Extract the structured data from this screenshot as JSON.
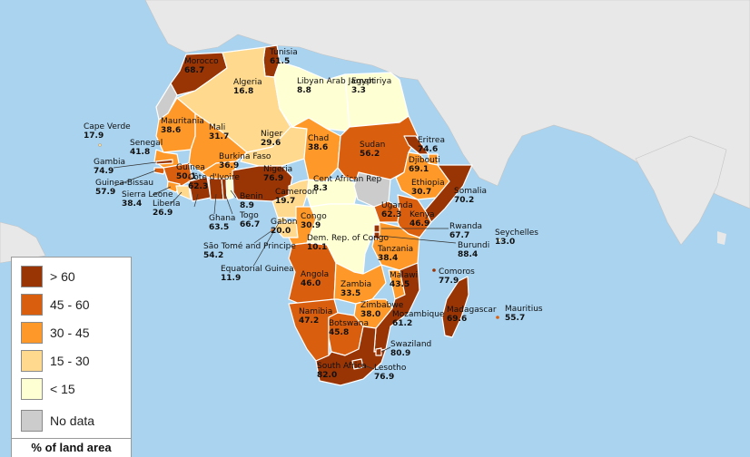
{
  "legend": {
    "title": "% of land area",
    "items": [
      {
        "label": "> 60",
        "color": "#993404"
      },
      {
        "label": "45 - 60",
        "color": "#d95f0e"
      },
      {
        "label": "30 - 45",
        "color": "#fe9929"
      },
      {
        "label": "15 - 30",
        "color": "#fed98e"
      },
      {
        "label": "< 15",
        "color": "#ffffd4"
      },
      {
        "label": "No data",
        "color": "#cccccc"
      }
    ]
  },
  "colors": {
    "sea": "#a9d3ef",
    "land_other": "#e8e8e8",
    "border": "#ffffff"
  },
  "countries": [
    {
      "name": "Morocco",
      "value": "68.7"
    },
    {
      "name": "Tunisia",
      "value": "61.5"
    },
    {
      "name": "Algeria",
      "value": "16.8"
    },
    {
      "name": "Libyan Arab Jamahiriya",
      "value": "8.8"
    },
    {
      "name": "Egypt",
      "value": "3.3"
    },
    {
      "name": "Cape Verde",
      "value": "17.9"
    },
    {
      "name": "Mauritania",
      "value": "38.6"
    },
    {
      "name": "Mali",
      "value": "31.7"
    },
    {
      "name": "Niger",
      "value": "29.6"
    },
    {
      "name": "Chad",
      "value": "38.6"
    },
    {
      "name": "Sudan",
      "value": "56.2"
    },
    {
      "name": "Eritrea",
      "value": "74.6"
    },
    {
      "name": "Senegal",
      "value": "41.8"
    },
    {
      "name": "Gambia",
      "value": "74.9"
    },
    {
      "name": "Guinea",
      "value": "50.1"
    },
    {
      "name": "Burkina Faso",
      "value": "36.9"
    },
    {
      "name": "Nigeria",
      "value": "76.9"
    },
    {
      "name": "Djibouti",
      "value": "69.1"
    },
    {
      "name": "Guinea-Bissau",
      "value": "57.9"
    },
    {
      "name": "Sierra Leone",
      "value": "38.4"
    },
    {
      "name": "Liberia",
      "value": "26.9"
    },
    {
      "name": "Côte d'Ivoire",
      "value": "62.3"
    },
    {
      "name": "Ghana",
      "value": "63.5"
    },
    {
      "name": "Benin",
      "value": "8.9"
    },
    {
      "name": "Togo",
      "value": "66.7"
    },
    {
      "name": "Cent African Rep",
      "value": "8.3"
    },
    {
      "name": "Ethiopia",
      "value": "30.7"
    },
    {
      "name": "Somalia",
      "value": "70.2"
    },
    {
      "name": "Cameroon",
      "value": "19.7"
    },
    {
      "name": "Uganda",
      "value": "62.3"
    },
    {
      "name": "Kenya",
      "value": "46.9"
    },
    {
      "name": "Gabon",
      "value": "20.0"
    },
    {
      "name": "Congo",
      "value": "30.9"
    },
    {
      "name": "Rwanda",
      "value": "67.7"
    },
    {
      "name": "Seychelles",
      "value": "13.0"
    },
    {
      "name": "Dem. Rep. of Congo",
      "value": "10.1"
    },
    {
      "name": "Burundi",
      "value": "88.4"
    },
    {
      "name": "São Tomé and Principe",
      "value": "54.2"
    },
    {
      "name": "Tanzania",
      "value": "38.4"
    },
    {
      "name": "Equatorial Guinea",
      "value": "11.9"
    },
    {
      "name": "Comoros",
      "value": "77.9"
    },
    {
      "name": "Angola",
      "value": "46.0"
    },
    {
      "name": "Malawi",
      "value": "43.5"
    },
    {
      "name": "Zambia",
      "value": "33.5"
    },
    {
      "name": "Madagascar",
      "value": "69.6"
    },
    {
      "name": "Mauritius",
      "value": "55.7"
    },
    {
      "name": "Namibia",
      "value": "47.2"
    },
    {
      "name": "Zimbabwe",
      "value": "38.0"
    },
    {
      "name": "Mozambique",
      "value": "61.2"
    },
    {
      "name": "Botswana",
      "value": "45.8"
    },
    {
      "name": "Swaziland",
      "value": "80.9"
    },
    {
      "name": "South Africa",
      "value": "82.0"
    },
    {
      "name": "Lesotho",
      "value": "76.9"
    }
  ]
}
